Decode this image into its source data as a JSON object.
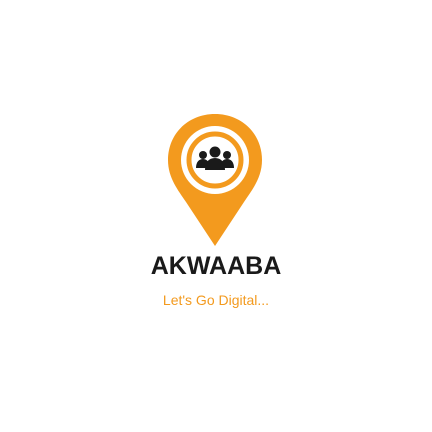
{
  "splash": {
    "app_name": "AKWAABA",
    "tagline": "Let's Go Digital...",
    "logo_icon": "map-pin-group-icon"
  },
  "colors": {
    "background": "#ffffff",
    "brand_orange": "#f39a1e",
    "app_name": "#1a1a1a",
    "tagline": "#f39a1e"
  }
}
